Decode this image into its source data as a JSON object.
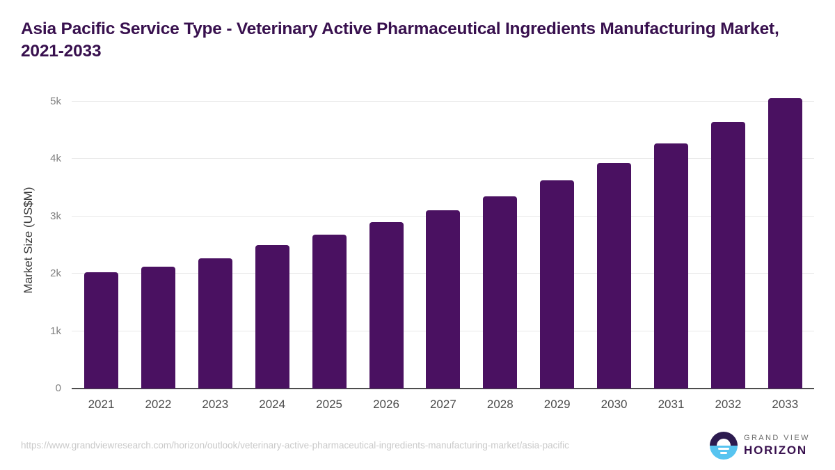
{
  "chart_data": {
    "type": "bar",
    "title": "Asia Pacific Service Type - Veterinary Active Pharmaceutical Ingredients Manufacturing Market, 2021-2033",
    "xlabel": "",
    "ylabel": "Market Size (US$M)",
    "categories": [
      "2021",
      "2022",
      "2023",
      "2024",
      "2025",
      "2026",
      "2027",
      "2028",
      "2029",
      "2030",
      "2031",
      "2032",
      "2033"
    ],
    "values": [
      2025,
      2130,
      2270,
      2500,
      2685,
      2895,
      3105,
      3350,
      3630,
      3935,
      4270,
      4645,
      5065
    ],
    "ylim": [
      0,
      5000
    ],
    "yticks": [
      {
        "value": 0,
        "label": "0"
      },
      {
        "value": 1000,
        "label": "1k"
      },
      {
        "value": 2000,
        "label": "2k"
      },
      {
        "value": 3000,
        "label": "3k"
      },
      {
        "value": 4000,
        "label": "4k"
      },
      {
        "value": 5000,
        "label": "5k"
      }
    ],
    "grid": true,
    "legend": "none",
    "bar_color": "#4a1161"
  },
  "colors": {
    "title": "#38104e",
    "bar": "#4a1161",
    "gridline": "#e8e8e8",
    "axis_line": "#4d4d4d",
    "y_tick_label": "#828282",
    "x_tick_label": "#4d4d4d",
    "url_text": "#c9c9c9",
    "logo_top_half": "#2c1b4f",
    "logo_bottom_half": "#57c4f0"
  },
  "footer": {
    "source_url": "https://www.grandviewresearch.com/horizon/outlook/veterinary-active-pharmaceutical-ingredients-manufacturing-market/asia-pacific",
    "logo": {
      "line1": "GRAND VIEW",
      "line2": "HORIZON"
    }
  }
}
